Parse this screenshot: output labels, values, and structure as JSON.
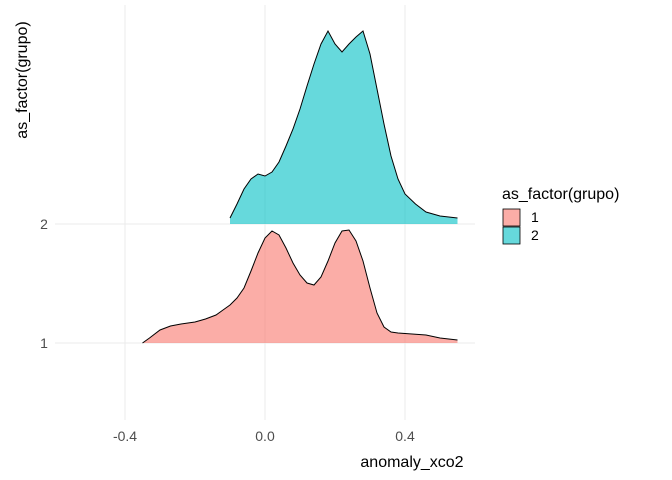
{
  "chart_data": {
    "type": "area",
    "subtype": "ridgeline-density",
    "xlabel": "anomaly_xco2",
    "ylabel": "as_factor(grupo)",
    "xlim": [
      -0.6,
      0.6
    ],
    "x_ticks": [
      -0.4,
      0.0,
      0.4
    ],
    "x_tick_labels": [
      "-0.4",
      "0.0",
      "0.4"
    ],
    "y_categories": [
      "1",
      "2"
    ],
    "grid": true,
    "legend": {
      "title": "as_factor(grupo)",
      "position": "right",
      "entries": [
        {
          "label": "1",
          "color": "#F8766D"
        },
        {
          "label": "2",
          "color": "#00BFC4"
        }
      ]
    },
    "series": [
      {
        "name": "1",
        "color": "#F8766D",
        "points": [
          [
            -0.35,
            0.0
          ],
          [
            -0.33,
            0.05
          ],
          [
            -0.3,
            0.13
          ],
          [
            -0.27,
            0.17
          ],
          [
            -0.24,
            0.19
          ],
          [
            -0.2,
            0.21
          ],
          [
            -0.17,
            0.24
          ],
          [
            -0.14,
            0.28
          ],
          [
            -0.12,
            0.33
          ],
          [
            -0.1,
            0.38
          ],
          [
            -0.08,
            0.45
          ],
          [
            -0.06,
            0.55
          ],
          [
            -0.04,
            0.72
          ],
          [
            -0.02,
            0.9
          ],
          [
            0.0,
            1.05
          ],
          [
            0.02,
            1.12
          ],
          [
            0.04,
            1.08
          ],
          [
            0.06,
            0.95
          ],
          [
            0.08,
            0.8
          ],
          [
            0.1,
            0.68
          ],
          [
            0.12,
            0.6
          ],
          [
            0.14,
            0.58
          ],
          [
            0.16,
            0.66
          ],
          [
            0.18,
            0.82
          ],
          [
            0.2,
            1.0
          ],
          [
            0.22,
            1.12
          ],
          [
            0.24,
            1.13
          ],
          [
            0.26,
            1.02
          ],
          [
            0.28,
            0.82
          ],
          [
            0.3,
            0.55
          ],
          [
            0.32,
            0.3
          ],
          [
            0.34,
            0.16
          ],
          [
            0.36,
            0.11
          ],
          [
            0.38,
            0.1
          ],
          [
            0.42,
            0.09
          ],
          [
            0.46,
            0.08
          ],
          [
            0.5,
            0.05
          ],
          [
            0.55,
            0.03
          ]
        ]
      },
      {
        "name": "2",
        "color": "#00BFC4",
        "points": [
          [
            -0.1,
            0.06
          ],
          [
            -0.08,
            0.2
          ],
          [
            -0.06,
            0.35
          ],
          [
            -0.04,
            0.45
          ],
          [
            -0.02,
            0.5
          ],
          [
            0.0,
            0.48
          ],
          [
            0.02,
            0.52
          ],
          [
            0.04,
            0.62
          ],
          [
            0.06,
            0.78
          ],
          [
            0.08,
            0.95
          ],
          [
            0.1,
            1.15
          ],
          [
            0.12,
            1.38
          ],
          [
            0.14,
            1.6
          ],
          [
            0.16,
            1.8
          ],
          [
            0.18,
            1.93
          ],
          [
            0.2,
            1.8
          ],
          [
            0.22,
            1.72
          ],
          [
            0.24,
            1.8
          ],
          [
            0.26,
            1.87
          ],
          [
            0.28,
            1.93
          ],
          [
            0.3,
            1.7
          ],
          [
            0.32,
            1.35
          ],
          [
            0.34,
            1.0
          ],
          [
            0.36,
            0.68
          ],
          [
            0.38,
            0.45
          ],
          [
            0.4,
            0.3
          ],
          [
            0.43,
            0.2
          ],
          [
            0.46,
            0.12
          ],
          [
            0.5,
            0.08
          ],
          [
            0.55,
            0.06
          ]
        ]
      }
    ]
  }
}
